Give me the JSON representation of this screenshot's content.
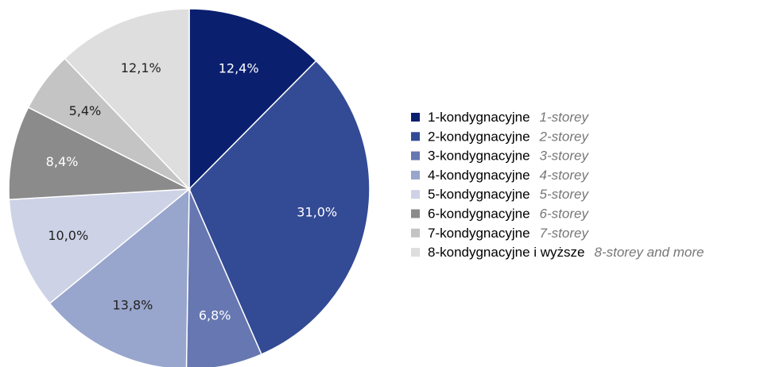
{
  "chart_data": {
    "type": "pie",
    "categories": [
      "1-kondygnacyjne",
      "2-kondygnacyjne",
      "3-kondygnacyjne",
      "4-kondygnacyjne",
      "5-kondygnacyjne",
      "6-kondygnacyjne",
      "7-kondygnacyjne",
      "8-kondygnacyjne i wyższe"
    ],
    "category_translations": [
      "1-storey",
      "2-storey",
      "3-storey",
      "4-storey",
      "5-storey",
      "6-storey",
      "7-storey",
      "8-storey and more"
    ],
    "values": [
      12.4,
      31.0,
      6.8,
      13.8,
      10.0,
      8.4,
      5.4,
      12.1
    ],
    "value_labels": [
      "12,4%",
      "31,0%",
      "6,8%",
      "13,8%",
      "10,0%",
      "8,4%",
      "5,4%",
      "12,1%"
    ],
    "colors": [
      "#0b1f6f",
      "#334a95",
      "#6677b1",
      "#98a5cc",
      "#cdd2e6",
      "#8b8b8b",
      "#c4c4c4",
      "#dedede"
    ]
  }
}
